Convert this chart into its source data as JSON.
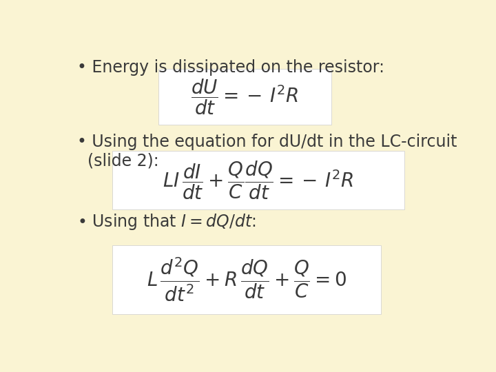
{
  "background_color": "#FAF4D3",
  "box_color": "#FFFFFF",
  "text_color": "#3a3a3a",
  "bullet1": "Energy is dissipated on the resistor:",
  "bullet2": "Using the equation for dU/dt in the LC-circuit\n  (slide 2):",
  "bullet3": "Using that $I=dQ/dt$:",
  "eq1": "$\\dfrac{dU}{dt} = -\\,I^2 R$",
  "eq2": "$LI\\,\\dfrac{dI}{dt} + \\dfrac{Q}{C}\\dfrac{dQ}{dt} = -\\,I^2 R$",
  "eq3": "$L\\,\\dfrac{d^2Q}{dt^2} + R\\,\\dfrac{dQ}{dt} + \\dfrac{Q}{C} = 0$",
  "fontsize_bullet": 17,
  "fontsize_eq": 20,
  "figsize": [
    7.2,
    5.4
  ],
  "dpi": 100
}
